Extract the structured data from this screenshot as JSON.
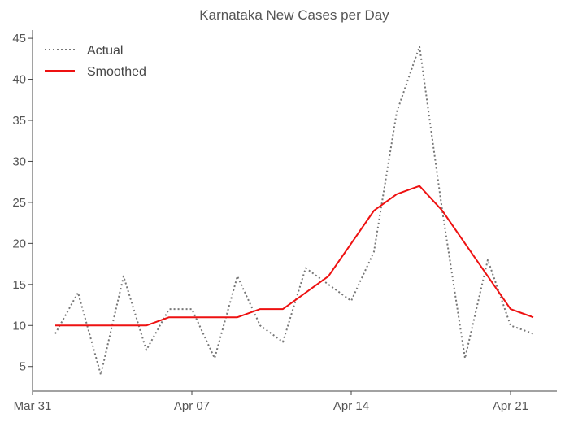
{
  "chart_data": {
    "type": "line",
    "title": "Karnataka New Cases per Day",
    "xlabel": "",
    "ylabel": "",
    "x_ticks": [
      "Mar 31",
      "Apr 07",
      "Apr 14",
      "Apr 21"
    ],
    "y_ticks": [
      5,
      10,
      15,
      20,
      25,
      30,
      35,
      40,
      45
    ],
    "ylim": [
      2,
      46
    ],
    "grid": false,
    "legend_position": "top-left",
    "series": [
      {
        "name": "Actual",
        "style": "dotted",
        "color": "#777777",
        "x": [
          "2020-04-01",
          "2020-04-02",
          "2020-04-03",
          "2020-04-04",
          "2020-04-05",
          "2020-04-06",
          "2020-04-07",
          "2020-04-08",
          "2020-04-09",
          "2020-04-10",
          "2020-04-11",
          "2020-04-12",
          "2020-04-13",
          "2020-04-14",
          "2020-04-15",
          "2020-04-16",
          "2020-04-17",
          "2020-04-18",
          "2020-04-19",
          "2020-04-20",
          "2020-04-21",
          "2020-04-22"
        ],
        "values": [
          9,
          14,
          4,
          16,
          7,
          12,
          12,
          6,
          16,
          10,
          8,
          17,
          15,
          13,
          19,
          36,
          44,
          24,
          6,
          18,
          10,
          9
        ]
      },
      {
        "name": "Smoothed",
        "style": "solid",
        "color": "#ee1111",
        "x": [
          "2020-04-01",
          "2020-04-02",
          "2020-04-03",
          "2020-04-04",
          "2020-04-05",
          "2020-04-06",
          "2020-04-07",
          "2020-04-08",
          "2020-04-09",
          "2020-04-10",
          "2020-04-11",
          "2020-04-12",
          "2020-04-13",
          "2020-04-14",
          "2020-04-15",
          "2020-04-16",
          "2020-04-17",
          "2020-04-18",
          "2020-04-19",
          "2020-04-20",
          "2020-04-21",
          "2020-04-22"
        ],
        "values": [
          10,
          10,
          10,
          10,
          10,
          11,
          11,
          11,
          11,
          12,
          12,
          14,
          16,
          20,
          24,
          26,
          27,
          24,
          20,
          16,
          12,
          11
        ]
      }
    ]
  }
}
